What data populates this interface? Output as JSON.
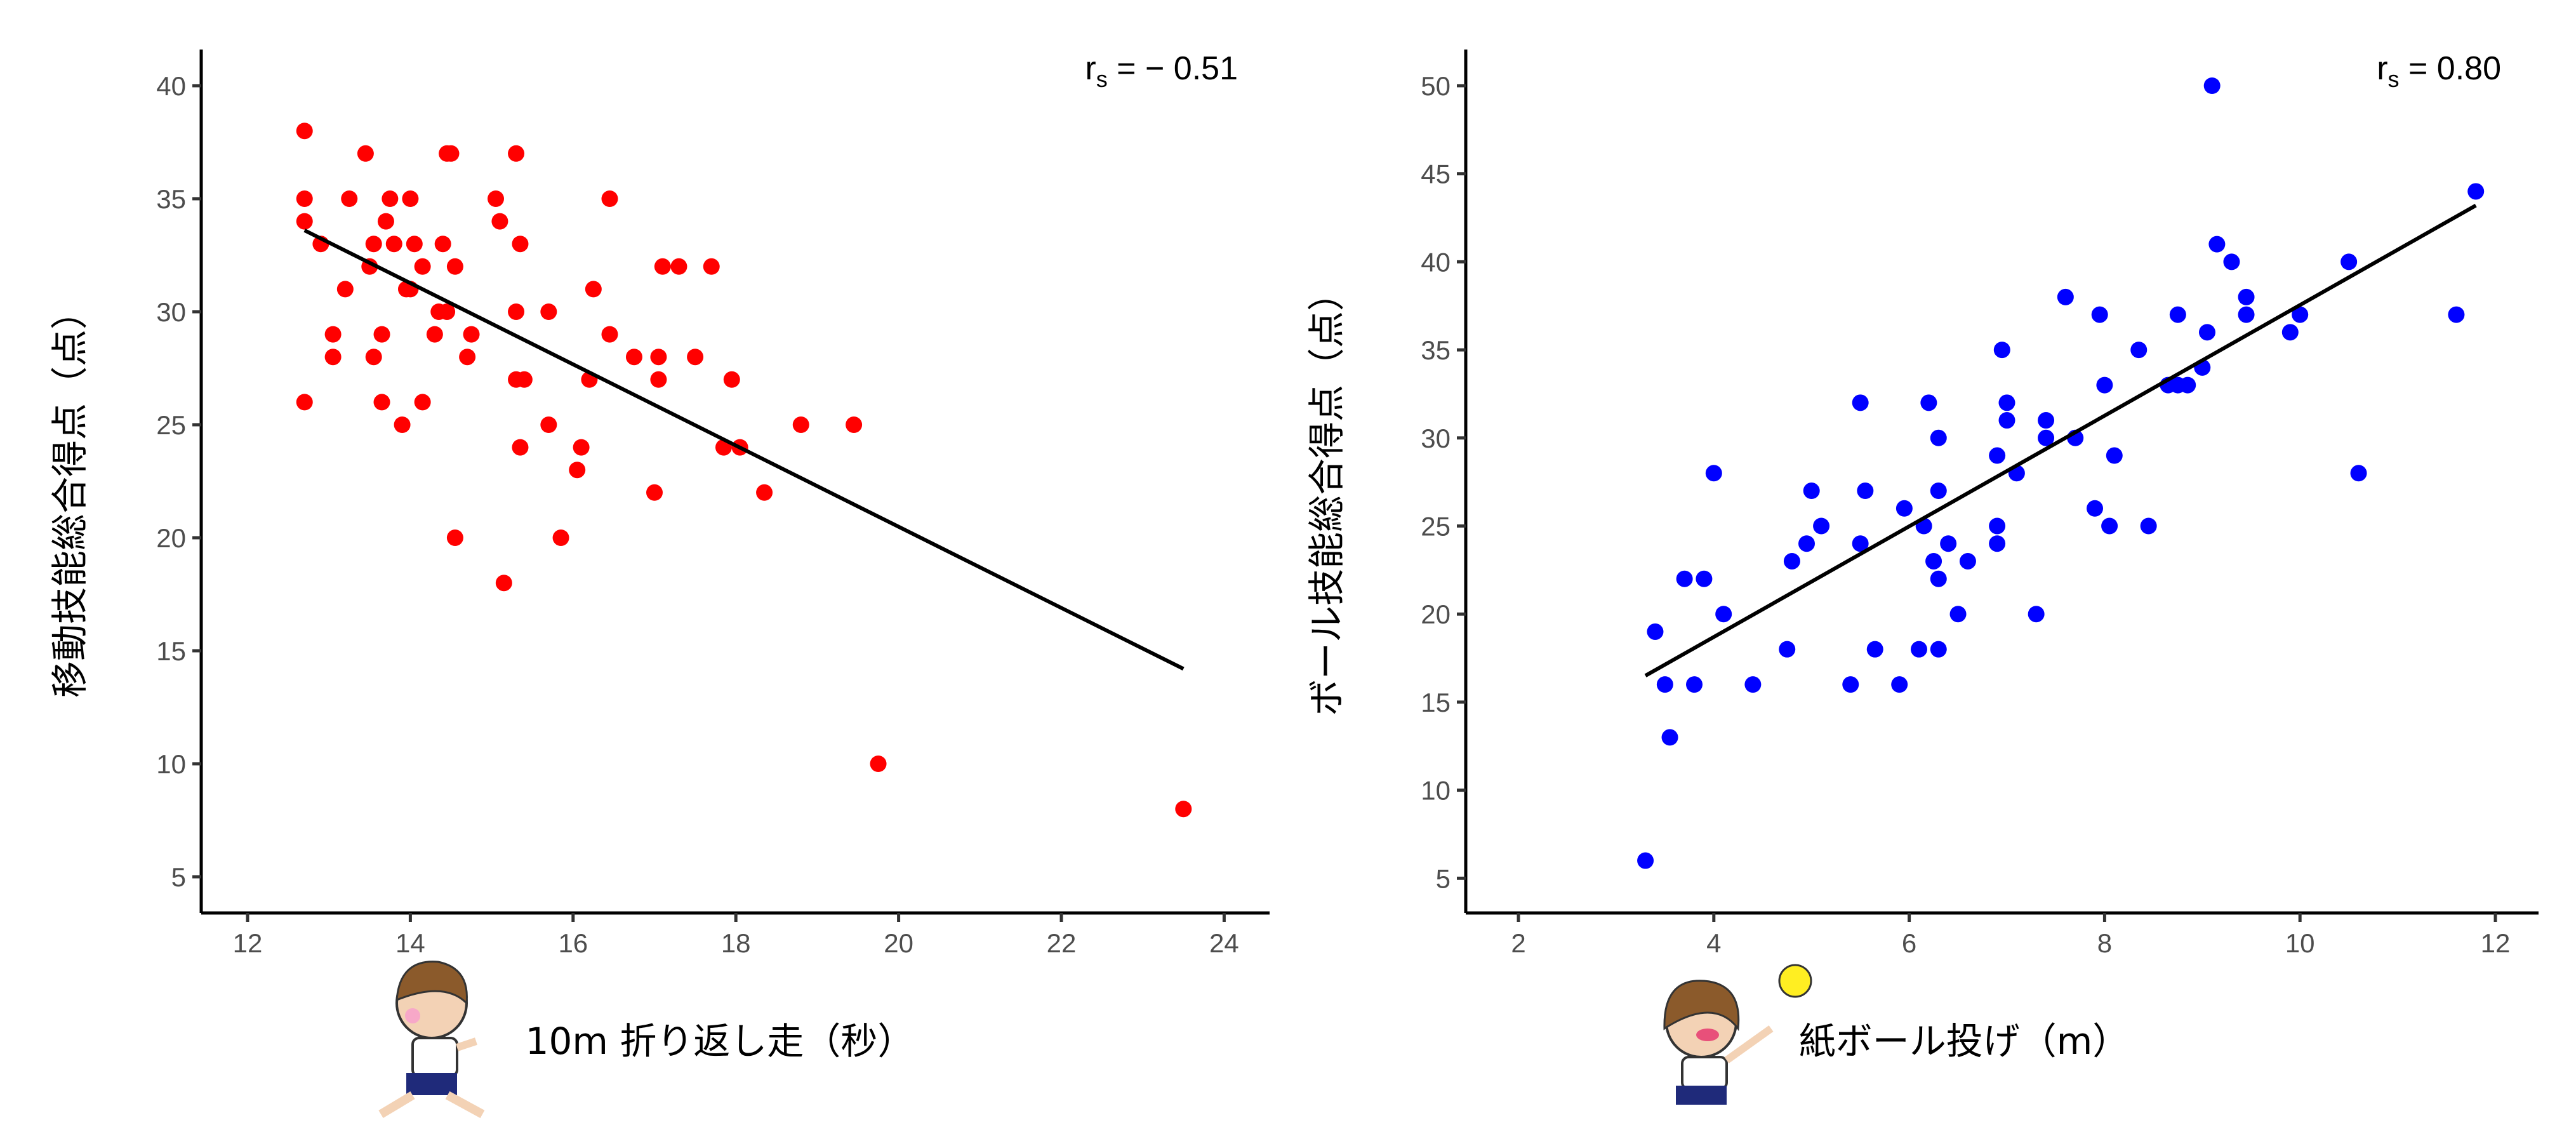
{
  "chart_data": [
    {
      "type": "scatter",
      "xlabel": "10m 折り返し走（秒）",
      "ylabel": "移動技能総合得点（点）",
      "xlim": [
        11.5,
        24.5
      ],
      "ylim": [
        3,
        41
      ],
      "xticks": [
        12,
        14,
        16,
        18,
        20,
        22,
        24
      ],
      "yticks": [
        5,
        10,
        15,
        20,
        25,
        30,
        35,
        40
      ],
      "color": "#ff0000",
      "annotation": {
        "r": "r",
        "sub": "s",
        "text": " = − 0.51"
      },
      "regression": [
        [
          12.7,
          33.6
        ],
        [
          23.5,
          14.2
        ]
      ],
      "points": [
        [
          12.7,
          38
        ],
        [
          12.7,
          35
        ],
        [
          12.7,
          34
        ],
        [
          12.7,
          26
        ],
        [
          12.9,
          33
        ],
        [
          13.05,
          29
        ],
        [
          13.05,
          28
        ],
        [
          13.2,
          31
        ],
        [
          13.25,
          35
        ],
        [
          13.45,
          37
        ],
        [
          13.5,
          32
        ],
        [
          13.55,
          33
        ],
        [
          13.55,
          28
        ],
        [
          13.65,
          26
        ],
        [
          13.65,
          29
        ],
        [
          13.7,
          34
        ],
        [
          13.75,
          35
        ],
        [
          13.8,
          33
        ],
        [
          13.9,
          25
        ],
        [
          13.95,
          31
        ],
        [
          14.0,
          35
        ],
        [
          14.0,
          31
        ],
        [
          14.05,
          33
        ],
        [
          14.15,
          26
        ],
        [
          14.15,
          32
        ],
        [
          14.3,
          29
        ],
        [
          14.35,
          30
        ],
        [
          14.4,
          33
        ],
        [
          14.45,
          30
        ],
        [
          14.45,
          37
        ],
        [
          14.5,
          37
        ],
        [
          14.55,
          32
        ],
        [
          14.55,
          20
        ],
        [
          14.7,
          28
        ],
        [
          14.75,
          29
        ],
        [
          15.05,
          35
        ],
        [
          15.1,
          34
        ],
        [
          15.15,
          18
        ],
        [
          15.3,
          30
        ],
        [
          15.3,
          37
        ],
        [
          15.3,
          27
        ],
        [
          15.35,
          33
        ],
        [
          15.35,
          24
        ],
        [
          15.4,
          27
        ],
        [
          15.7,
          25
        ],
        [
          15.7,
          30
        ],
        [
          15.85,
          20
        ],
        [
          16.05,
          23
        ],
        [
          16.1,
          24
        ],
        [
          16.2,
          27
        ],
        [
          16.25,
          31
        ],
        [
          16.45,
          29
        ],
        [
          16.45,
          35
        ],
        [
          16.75,
          28
        ],
        [
          17.0,
          22
        ],
        [
          17.05,
          28
        ],
        [
          17.05,
          27
        ],
        [
          17.1,
          32
        ],
        [
          17.3,
          32
        ],
        [
          17.5,
          28
        ],
        [
          17.7,
          32
        ],
        [
          17.85,
          24
        ],
        [
          17.95,
          27
        ],
        [
          18.05,
          24
        ],
        [
          18.35,
          22
        ],
        [
          18.8,
          25
        ],
        [
          19.45,
          25
        ],
        [
          19.75,
          10
        ],
        [
          23.5,
          8
        ]
      ]
    },
    {
      "type": "scatter",
      "xlabel": "紙ボール投げ（m）",
      "ylabel": "ボール技能総合得点（点）",
      "xlim": [
        1.5,
        12.5
      ],
      "ylim": [
        3,
        52
      ],
      "xticks": [
        2,
        4,
        6,
        8,
        10,
        12
      ],
      "yticks": [
        5,
        10,
        15,
        20,
        25,
        30,
        35,
        40,
        45,
        50
      ],
      "color": "#0000ff",
      "annotation": {
        "r": "r",
        "sub": "s",
        "text": " = 0.80"
      },
      "regression": [
        [
          3.3,
          16.5
        ],
        [
          11.8,
          43.2
        ]
      ],
      "points": [
        [
          3.3,
          6
        ],
        [
          3.4,
          19
        ],
        [
          3.5,
          16
        ],
        [
          3.55,
          13
        ],
        [
          3.7,
          22
        ],
        [
          3.8,
          16
        ],
        [
          3.9,
          22
        ],
        [
          4.0,
          28
        ],
        [
          4.1,
          20
        ],
        [
          4.4,
          16
        ],
        [
          4.75,
          18
        ],
        [
          4.8,
          23
        ],
        [
          4.95,
          24
        ],
        [
          5.0,
          27
        ],
        [
          5.1,
          25
        ],
        [
          5.4,
          16
        ],
        [
          5.5,
          32
        ],
        [
          5.5,
          24
        ],
        [
          5.55,
          27
        ],
        [
          5.65,
          18
        ],
        [
          5.9,
          16
        ],
        [
          5.95,
          26
        ],
        [
          6.1,
          18
        ],
        [
          6.15,
          25
        ],
        [
          6.2,
          32
        ],
        [
          6.25,
          23
        ],
        [
          6.3,
          27
        ],
        [
          6.3,
          30
        ],
        [
          6.3,
          22
        ],
        [
          6.3,
          18
        ],
        [
          6.4,
          24
        ],
        [
          6.5,
          20
        ],
        [
          6.6,
          23
        ],
        [
          6.9,
          24
        ],
        [
          6.9,
          25
        ],
        [
          6.9,
          29
        ],
        [
          6.95,
          35
        ],
        [
          7.0,
          32
        ],
        [
          7.0,
          31
        ],
        [
          7.1,
          28
        ],
        [
          7.3,
          20
        ],
        [
          7.4,
          31
        ],
        [
          7.4,
          30
        ],
        [
          7.6,
          38
        ],
        [
          7.7,
          30
        ],
        [
          7.9,
          26
        ],
        [
          7.95,
          37
        ],
        [
          8.0,
          33
        ],
        [
          8.05,
          25
        ],
        [
          8.1,
          29
        ],
        [
          8.35,
          35
        ],
        [
          8.45,
          25
        ],
        [
          8.65,
          33
        ],
        [
          8.75,
          33
        ],
        [
          8.75,
          37
        ],
        [
          8.85,
          33
        ],
        [
          9.0,
          34
        ],
        [
          9.05,
          36
        ],
        [
          9.1,
          50
        ],
        [
          9.15,
          41
        ],
        [
          9.3,
          40
        ],
        [
          9.45,
          37
        ],
        [
          9.45,
          38
        ],
        [
          9.9,
          36
        ],
        [
          10.0,
          37
        ],
        [
          10.5,
          40
        ],
        [
          10.6,
          28
        ],
        [
          11.6,
          37
        ],
        [
          11.8,
          44
        ]
      ]
    }
  ]
}
